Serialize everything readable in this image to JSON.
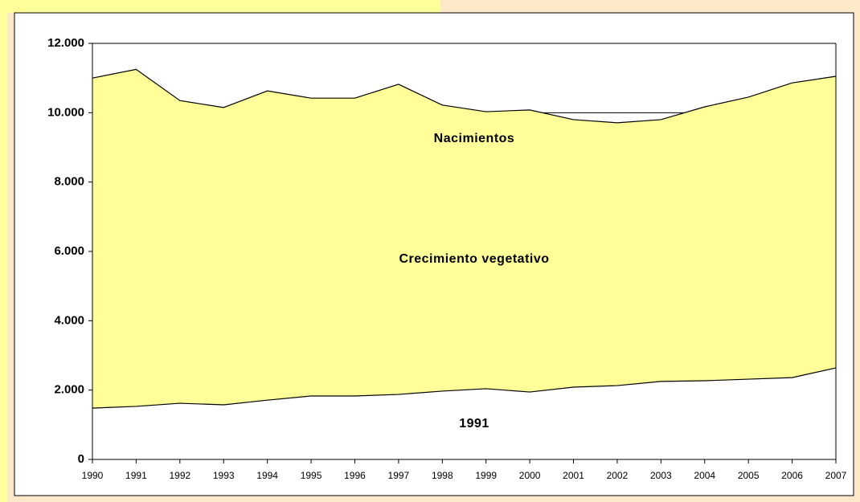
{
  "chart_data": {
    "type": "area",
    "categories": [
      "1990",
      "1991",
      "1992",
      "1993",
      "1994",
      "1995",
      "1996",
      "1997",
      "1998",
      "1999",
      "2000",
      "2001",
      "2002",
      "2003",
      "2004",
      "2005",
      "2006",
      "2007"
    ],
    "series": [
      {
        "color": "#ffff99",
        "values": [
          11000,
          11250,
          10350,
          10150,
          10630,
          10420,
          10420,
          10820,
          10220,
          10030,
          10080,
          9800,
          9710,
          9800,
          10170,
          10450,
          10860,
          11050
        ]
      },
      {
        "color": "#ffffff",
        "values": [
          1480,
          1530,
          1620,
          1575,
          1710,
          1830,
          1830,
          1875,
          1970,
          2040,
          1945,
          2085,
          2130,
          2250,
          2270,
          2315,
          2360,
          2640
        ]
      }
    ],
    "ylim": [
      0,
      12000
    ],
    "yticks": [
      0,
      {
        "value": 2000,
        "label": "2.000"
      },
      {
        "value": 4000,
        "label": "4.000"
      },
      {
        "value": 6000,
        "label": "6.000"
      },
      {
        "value": 8000,
        "label": "8.000"
      },
      {
        "value": 10000,
        "label": "10.000"
      },
      {
        "value": 12000,
        "label": "12.000"
      }
    ],
    "grid": true,
    "annotations": [
      "Nacimientos",
      "Crecimiento vegetativo",
      "1991"
    ]
  }
}
